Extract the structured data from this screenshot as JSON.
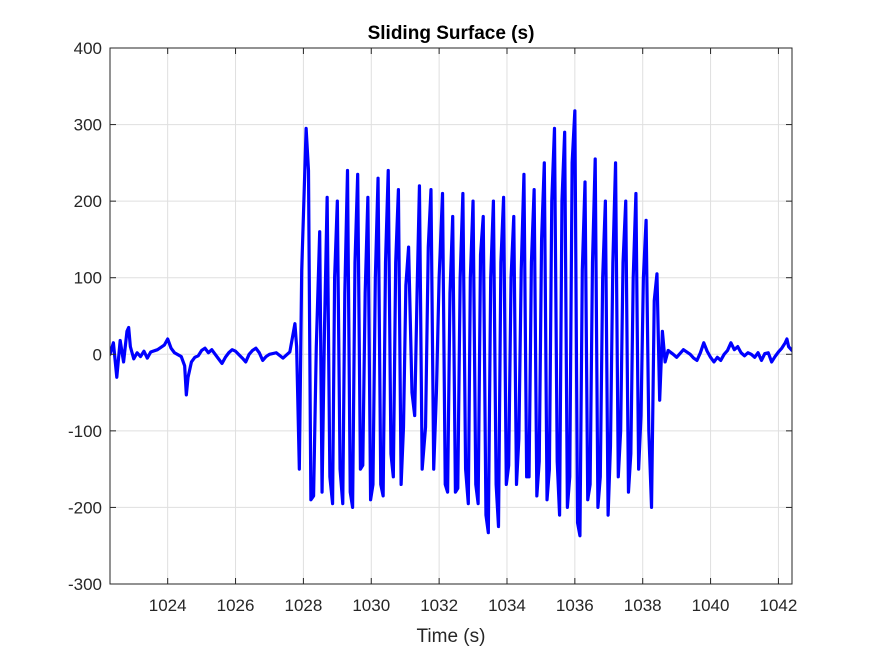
{
  "chart_data": {
    "type": "line",
    "title": "Sliding Surface (s)",
    "xlabel": "Time (s)",
    "ylabel": "",
    "xlim": [
      1022.3,
      1042.4
    ],
    "ylim": [
      -300,
      400
    ],
    "xticks": [
      1024,
      1026,
      1028,
      1030,
      1032,
      1034,
      1036,
      1038,
      1040,
      1042
    ],
    "yticks": [
      -300,
      -200,
      -100,
      0,
      100,
      200,
      300,
      400
    ],
    "grid": true,
    "series": [
      {
        "color": "#0000ff",
        "points": [
          [
            1022.3,
            0
          ],
          [
            1022.4,
            15
          ],
          [
            1022.5,
            -30
          ],
          [
            1022.6,
            18
          ],
          [
            1022.7,
            -10
          ],
          [
            1022.8,
            30
          ],
          [
            1022.85,
            35
          ],
          [
            1022.9,
            10
          ],
          [
            1023.0,
            -6
          ],
          [
            1023.1,
            2
          ],
          [
            1023.2,
            -3
          ],
          [
            1023.3,
            4
          ],
          [
            1023.4,
            -5
          ],
          [
            1023.5,
            3
          ],
          [
            1023.7,
            6
          ],
          [
            1023.9,
            12
          ],
          [
            1024.0,
            20
          ],
          [
            1024.1,
            8
          ],
          [
            1024.2,
            2
          ],
          [
            1024.4,
            -3
          ],
          [
            1024.5,
            -15
          ],
          [
            1024.55,
            -53
          ],
          [
            1024.6,
            -30
          ],
          [
            1024.7,
            -10
          ],
          [
            1024.8,
            -4
          ],
          [
            1024.9,
            -2
          ],
          [
            1025.0,
            5
          ],
          [
            1025.1,
            8
          ],
          [
            1025.2,
            2
          ],
          [
            1025.3,
            6
          ],
          [
            1025.4,
            0
          ],
          [
            1025.5,
            -6
          ],
          [
            1025.6,
            -12
          ],
          [
            1025.7,
            -4
          ],
          [
            1025.8,
            2
          ],
          [
            1025.9,
            6
          ],
          [
            1026.0,
            4
          ],
          [
            1026.2,
            -5
          ],
          [
            1026.3,
            -10
          ],
          [
            1026.4,
            0
          ],
          [
            1026.5,
            5
          ],
          [
            1026.6,
            8
          ],
          [
            1026.7,
            2
          ],
          [
            1026.8,
            -8
          ],
          [
            1026.9,
            -3
          ],
          [
            1027.0,
            0
          ],
          [
            1027.2,
            2
          ],
          [
            1027.4,
            -5
          ],
          [
            1027.6,
            3
          ],
          [
            1027.75,
            40
          ],
          [
            1027.8,
            10
          ],
          [
            1027.88,
            -150
          ],
          [
            1027.95,
            110
          ],
          [
            1028.0,
            180
          ],
          [
            1028.08,
            295
          ],
          [
            1028.15,
            240
          ],
          [
            1028.22,
            -190
          ],
          [
            1028.3,
            -185
          ],
          [
            1028.38,
            10
          ],
          [
            1028.48,
            160
          ],
          [
            1028.55,
            -180
          ],
          [
            1028.62,
            30
          ],
          [
            1028.7,
            205
          ],
          [
            1028.78,
            -160
          ],
          [
            1028.86,
            -195
          ],
          [
            1028.92,
            100
          ],
          [
            1029.0,
            200
          ],
          [
            1029.08,
            -150
          ],
          [
            1029.16,
            -195
          ],
          [
            1029.22,
            80
          ],
          [
            1029.3,
            240
          ],
          [
            1029.38,
            -180
          ],
          [
            1029.45,
            -200
          ],
          [
            1029.52,
            120
          ],
          [
            1029.6,
            235
          ],
          [
            1029.68,
            -150
          ],
          [
            1029.75,
            -145
          ],
          [
            1029.82,
            80
          ],
          [
            1029.9,
            205
          ],
          [
            1029.98,
            -190
          ],
          [
            1030.05,
            -170
          ],
          [
            1030.12,
            100
          ],
          [
            1030.2,
            230
          ],
          [
            1030.28,
            -170
          ],
          [
            1030.35,
            -185
          ],
          [
            1030.42,
            120
          ],
          [
            1030.5,
            240
          ],
          [
            1030.58,
            -130
          ],
          [
            1030.65,
            -160
          ],
          [
            1030.72,
            120
          ],
          [
            1030.8,
            215
          ],
          [
            1030.88,
            -170
          ],
          [
            1030.95,
            -95
          ],
          [
            1031.02,
            90
          ],
          [
            1031.1,
            140
          ],
          [
            1031.2,
            -50
          ],
          [
            1031.28,
            -80
          ],
          [
            1031.35,
            80
          ],
          [
            1031.42,
            220
          ],
          [
            1031.5,
            -150
          ],
          [
            1031.6,
            -95
          ],
          [
            1031.68,
            140
          ],
          [
            1031.76,
            215
          ],
          [
            1031.84,
            -150
          ],
          [
            1031.92,
            -50
          ],
          [
            1032.0,
            100
          ],
          [
            1032.1,
            210
          ],
          [
            1032.18,
            -170
          ],
          [
            1032.25,
            -180
          ],
          [
            1032.32,
            80
          ],
          [
            1032.4,
            180
          ],
          [
            1032.48,
            -180
          ],
          [
            1032.55,
            -175
          ],
          [
            1032.62,
            100
          ],
          [
            1032.7,
            210
          ],
          [
            1032.78,
            -150
          ],
          [
            1032.86,
            -195
          ],
          [
            1032.92,
            100
          ],
          [
            1033.0,
            200
          ],
          [
            1033.08,
            -170
          ],
          [
            1033.15,
            -195
          ],
          [
            1033.22,
            130
          ],
          [
            1033.3,
            180
          ],
          [
            1033.38,
            -210
          ],
          [
            1033.45,
            -233
          ],
          [
            1033.52,
            100
          ],
          [
            1033.6,
            200
          ],
          [
            1033.68,
            -170
          ],
          [
            1033.75,
            -225
          ],
          [
            1033.82,
            120
          ],
          [
            1033.9,
            205
          ],
          [
            1033.98,
            -170
          ],
          [
            1034.05,
            -145
          ],
          [
            1034.12,
            100
          ],
          [
            1034.2,
            180
          ],
          [
            1034.28,
            -170
          ],
          [
            1034.35,
            -110
          ],
          [
            1034.42,
            110
          ],
          [
            1034.5,
            235
          ],
          [
            1034.58,
            -160
          ],
          [
            1034.65,
            -160
          ],
          [
            1034.72,
            120
          ],
          [
            1034.8,
            215
          ],
          [
            1034.88,
            -185
          ],
          [
            1034.95,
            -140
          ],
          [
            1035.02,
            150
          ],
          [
            1035.1,
            250
          ],
          [
            1035.18,
            -190
          ],
          [
            1035.25,
            -150
          ],
          [
            1035.32,
            200
          ],
          [
            1035.4,
            295
          ],
          [
            1035.48,
            -140
          ],
          [
            1035.55,
            -210
          ],
          [
            1035.62,
            200
          ],
          [
            1035.7,
            290
          ],
          [
            1035.78,
            -200
          ],
          [
            1035.85,
            -160
          ],
          [
            1035.92,
            250
          ],
          [
            1036.0,
            318
          ],
          [
            1036.08,
            -220
          ],
          [
            1036.15,
            -237
          ],
          [
            1036.22,
            110
          ],
          [
            1036.3,
            225
          ],
          [
            1036.38,
            -190
          ],
          [
            1036.45,
            -170
          ],
          [
            1036.52,
            120
          ],
          [
            1036.6,
            255
          ],
          [
            1036.68,
            -200
          ],
          [
            1036.75,
            -160
          ],
          [
            1036.82,
            100
          ],
          [
            1036.9,
            200
          ],
          [
            1036.98,
            -210
          ],
          [
            1037.05,
            -120
          ],
          [
            1037.12,
            120
          ],
          [
            1037.2,
            250
          ],
          [
            1037.28,
            -160
          ],
          [
            1037.35,
            -100
          ],
          [
            1037.42,
            120
          ],
          [
            1037.5,
            200
          ],
          [
            1037.58,
            -180
          ],
          [
            1037.65,
            -130
          ],
          [
            1037.72,
            100
          ],
          [
            1037.8,
            210
          ],
          [
            1037.88,
            -150
          ],
          [
            1037.95,
            -80
          ],
          [
            1038.02,
            100
          ],
          [
            1038.1,
            175
          ],
          [
            1038.18,
            -100
          ],
          [
            1038.26,
            -200
          ],
          [
            1038.34,
            70
          ],
          [
            1038.42,
            105
          ],
          [
            1038.5,
            -60
          ],
          [
            1038.58,
            30
          ],
          [
            1038.66,
            -10
          ],
          [
            1038.75,
            5
          ],
          [
            1038.9,
            0
          ],
          [
            1039.0,
            -4
          ],
          [
            1039.2,
            6
          ],
          [
            1039.4,
            0
          ],
          [
            1039.5,
            -5
          ],
          [
            1039.6,
            -8
          ],
          [
            1039.7,
            2
          ],
          [
            1039.8,
            15
          ],
          [
            1039.9,
            4
          ],
          [
            1040.0,
            -4
          ],
          [
            1040.1,
            -10
          ],
          [
            1040.2,
            -4
          ],
          [
            1040.3,
            -8
          ],
          [
            1040.4,
            0
          ],
          [
            1040.5,
            5
          ],
          [
            1040.6,
            15
          ],
          [
            1040.7,
            6
          ],
          [
            1040.8,
            10
          ],
          [
            1040.9,
            2
          ],
          [
            1041.0,
            -2
          ],
          [
            1041.1,
            2
          ],
          [
            1041.2,
            0
          ],
          [
            1041.3,
            -4
          ],
          [
            1041.4,
            2
          ],
          [
            1041.5,
            -8
          ],
          [
            1041.6,
            1
          ],
          [
            1041.7,
            2
          ],
          [
            1041.8,
            -10
          ],
          [
            1041.9,
            -3
          ],
          [
            1042.0,
            3
          ],
          [
            1042.1,
            8
          ],
          [
            1042.2,
            15
          ],
          [
            1042.25,
            20
          ],
          [
            1042.3,
            10
          ],
          [
            1042.4,
            5
          ]
        ]
      }
    ]
  }
}
